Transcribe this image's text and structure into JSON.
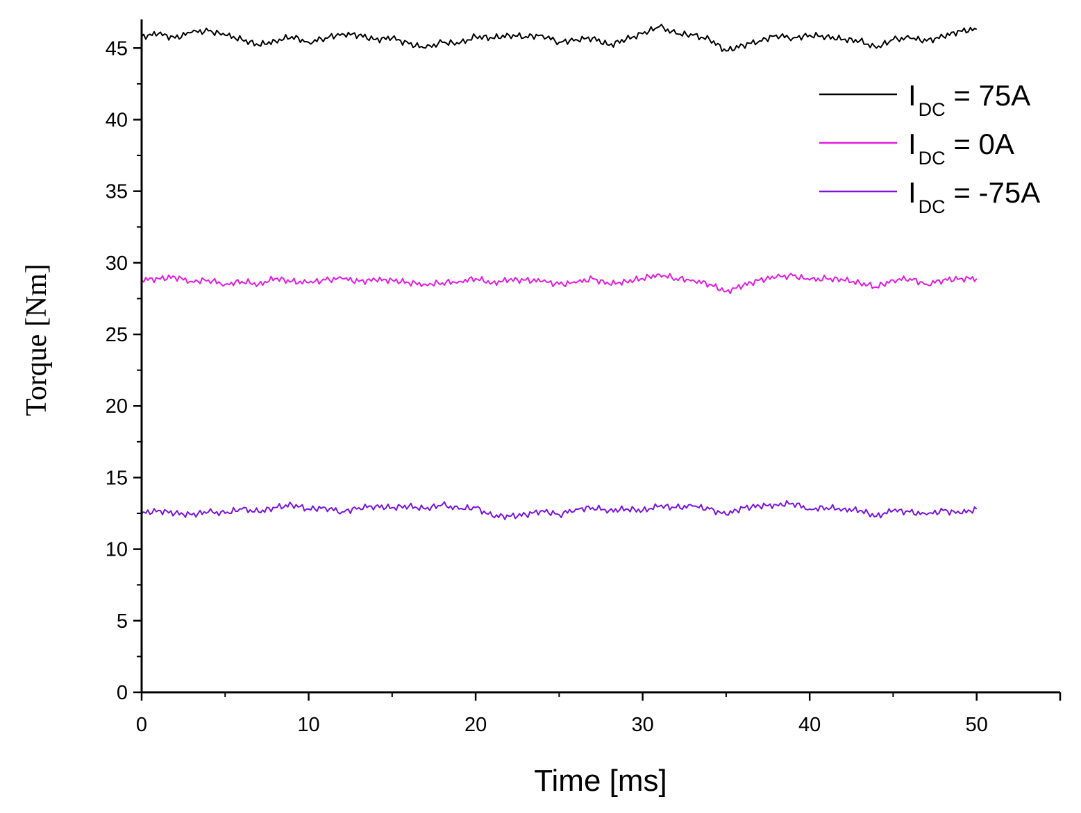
{
  "chart_data": {
    "type": "line",
    "xlabel": "Time [ms]",
    "ylabel": "Torque [Nm]",
    "xlim": [
      0,
      55
    ],
    "ylim": [
      0,
      47
    ],
    "x_ticks": [
      0,
      10,
      20,
      30,
      40,
      50
    ],
    "x_tick_labels": [
      "0",
      "10",
      "20",
      "30",
      "40",
      "50"
    ],
    "y_ticks": [
      0,
      5,
      10,
      15,
      20,
      25,
      30,
      35,
      40,
      45
    ],
    "y_tick_labels": [
      "0",
      "5",
      "10",
      "15",
      "20",
      "25",
      "30",
      "35",
      "40",
      "45"
    ],
    "grid": false,
    "legend_position": "top-right",
    "x": [
      0,
      1,
      2,
      3,
      4,
      5,
      6,
      7,
      8,
      9,
      10,
      11,
      12,
      13,
      14,
      15,
      16,
      17,
      18,
      19,
      20,
      21,
      22,
      23,
      24,
      25,
      26,
      27,
      28,
      29,
      30,
      31,
      32,
      33,
      34,
      35,
      36,
      37,
      38,
      39,
      40,
      41,
      42,
      43,
      44,
      45,
      46,
      47,
      48,
      49,
      50
    ],
    "series": [
      {
        "label_main": "I",
        "label_sub": "DC",
        "label_rest": " = 75A",
        "color": "#000000",
        "values": [
          45.8,
          46.0,
          45.7,
          46.1,
          46.2,
          45.9,
          45.6,
          45.2,
          45.5,
          45.8,
          45.4,
          45.7,
          46.0,
          45.9,
          45.6,
          45.7,
          45.3,
          45.0,
          45.4,
          45.3,
          45.8,
          45.7,
          45.9,
          45.8,
          45.9,
          45.4,
          45.6,
          45.7,
          45.2,
          45.6,
          46.0,
          46.5,
          46.0,
          45.9,
          45.6,
          44.8,
          45.2,
          45.5,
          45.9,
          45.7,
          45.9,
          45.8,
          45.6,
          45.5,
          45.0,
          45.6,
          45.7,
          45.5,
          45.8,
          46.2,
          46.3
        ]
      },
      {
        "label_main": "I",
        "label_sub": "DC",
        "label_rest": " = 0A",
        "color": "#e41ae4",
        "values": [
          28.8,
          28.9,
          29.0,
          28.7,
          28.8,
          28.5,
          28.7,
          28.5,
          28.9,
          28.7,
          28.6,
          28.8,
          28.9,
          28.7,
          28.8,
          28.8,
          28.6,
          28.5,
          28.6,
          28.7,
          28.9,
          28.6,
          28.8,
          28.8,
          28.7,
          28.5,
          28.6,
          28.9,
          28.5,
          28.7,
          28.9,
          29.2,
          28.9,
          28.8,
          28.5,
          28.0,
          28.4,
          28.8,
          29.0,
          29.1,
          28.8,
          28.9,
          28.8,
          28.6,
          28.3,
          28.8,
          28.9,
          28.5,
          28.8,
          28.9,
          28.9
        ]
      },
      {
        "label_main": "I",
        "label_sub": "DC",
        "label_rest": " = -75A",
        "color": "#7a12e0",
        "values": [
          12.5,
          12.7,
          12.5,
          12.4,
          12.6,
          12.5,
          12.8,
          12.6,
          12.9,
          13.1,
          12.8,
          12.9,
          12.6,
          12.9,
          13.0,
          12.9,
          13.0,
          12.8,
          13.1,
          12.8,
          12.9,
          12.3,
          12.3,
          12.4,
          12.7,
          12.4,
          12.8,
          12.9,
          12.7,
          12.8,
          12.7,
          13.0,
          12.9,
          13.0,
          12.8,
          12.4,
          12.9,
          13.0,
          13.1,
          13.2,
          12.8,
          12.9,
          12.8,
          12.7,
          12.3,
          12.7,
          12.6,
          12.4,
          12.7,
          12.5,
          12.8
        ]
      }
    ]
  }
}
